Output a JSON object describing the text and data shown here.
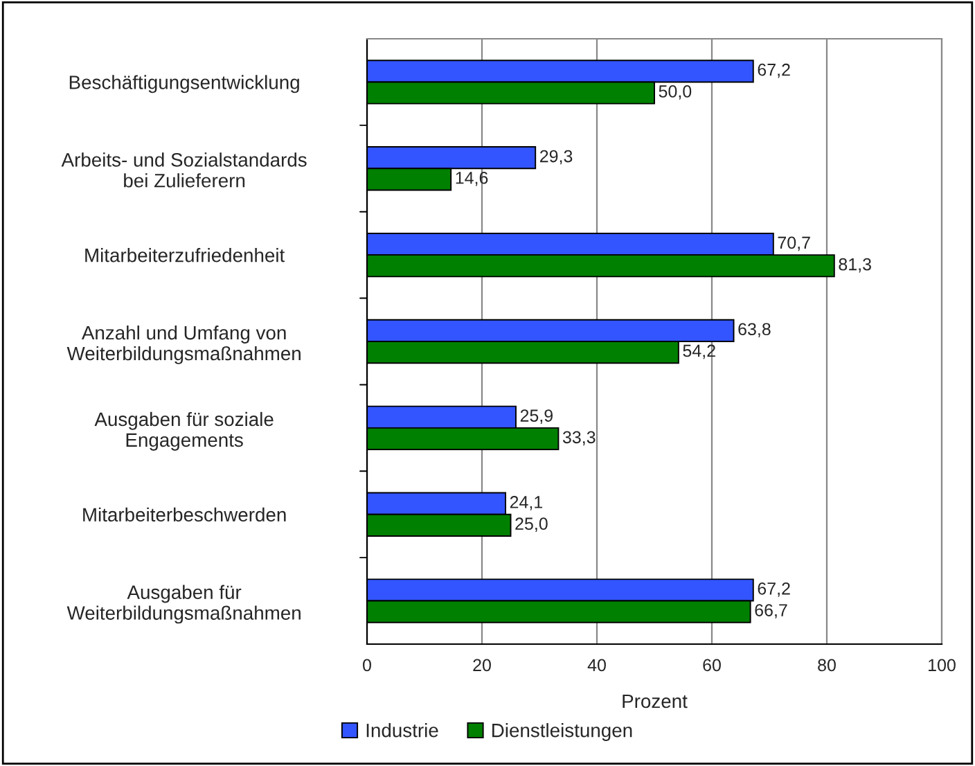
{
  "chart_data": {
    "type": "bar",
    "orientation": "horizontal",
    "xlabel": "Prozent",
    "categories": [
      "Beschäftigungsentwicklung",
      "Arbeits- und Sozialstandards\nbei Zulieferern",
      "Mitarbeiterzufriedenheit",
      "Anzahl und Umfang von\nWeiterbildungsmaßnahmen",
      "Ausgaben für soziale\nEngagements",
      "Mitarbeiterbeschwerden",
      "Ausgaben für\nWeiterbildungsmaßnahmen"
    ],
    "series": [
      {
        "name": "Industrie",
        "color": "#3355ff",
        "values": [
          67.2,
          29.3,
          70.7,
          63.8,
          25.9,
          24.1,
          67.2
        ],
        "value_labels": [
          "67,2",
          "29,3",
          "70,7",
          "63,8",
          "25,9",
          "24,1",
          "67,2"
        ]
      },
      {
        "name": "Dienstleistungen",
        "color": "#008000",
        "values": [
          50.0,
          14.6,
          81.3,
          54.2,
          33.3,
          25.0,
          66.7
        ],
        "value_labels": [
          "50,0",
          "14,6",
          "81,3",
          "54,2",
          "33,3",
          "25,0",
          "66,7"
        ]
      }
    ],
    "xlim": [
      0,
      100
    ],
    "xticks": [
      0,
      20,
      40,
      60,
      80,
      100
    ],
    "grid": "x",
    "legend": "bottom"
  }
}
